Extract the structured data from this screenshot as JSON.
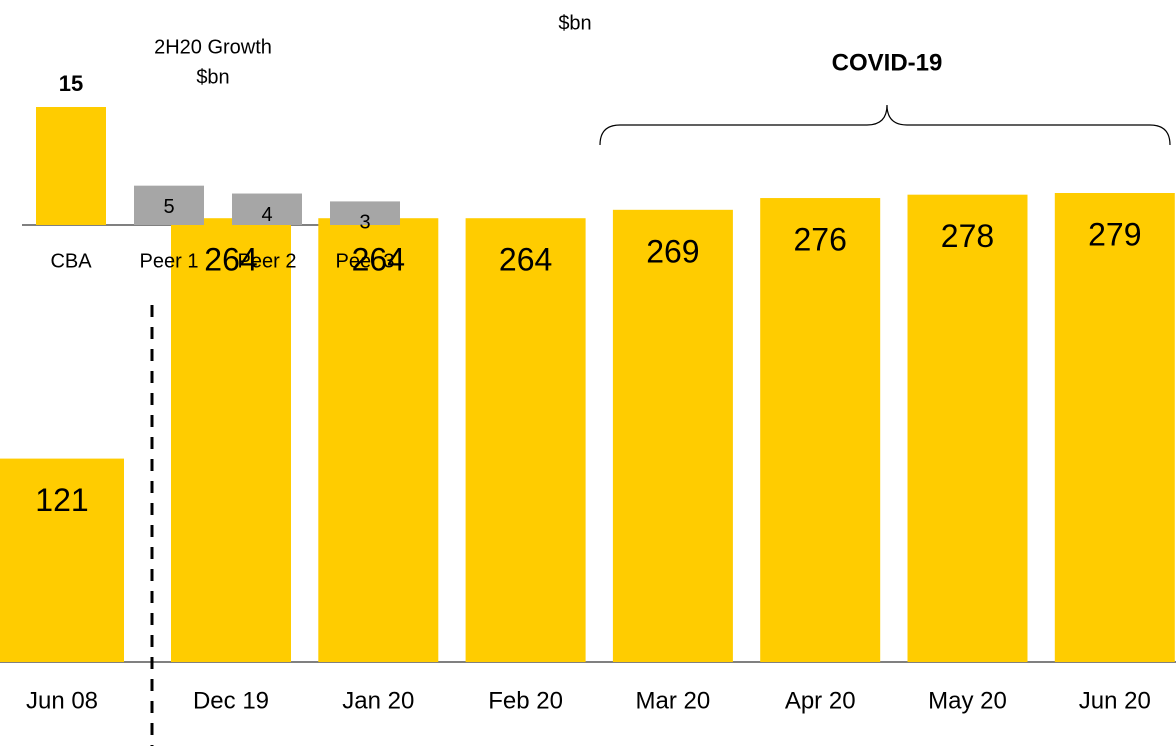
{
  "chart_data": [
    {
      "type": "bar",
      "subtitle": "$bn",
      "annotation": "COVID-19",
      "categories": [
        "Jun 08",
        "Dec 19",
        "Jan 20",
        "Feb 20",
        "Mar 20",
        "Apr 20",
        "May 20",
        "Jun 20"
      ],
      "values": [
        121,
        264,
        264,
        264,
        269,
        276,
        278,
        279
      ],
      "color": "#ffcc00"
    },
    {
      "type": "bar",
      "title": "2H20 Growth",
      "subtitle": "$bn",
      "categories": [
        "CBA",
        "Peer 1",
        "Peer 2",
        "Peer 3"
      ],
      "values": [
        15,
        5,
        4,
        3
      ],
      "colors": [
        "#ffcc00",
        "#a6a6a6",
        "#a6a6a6",
        "#a6a6a6"
      ]
    }
  ]
}
